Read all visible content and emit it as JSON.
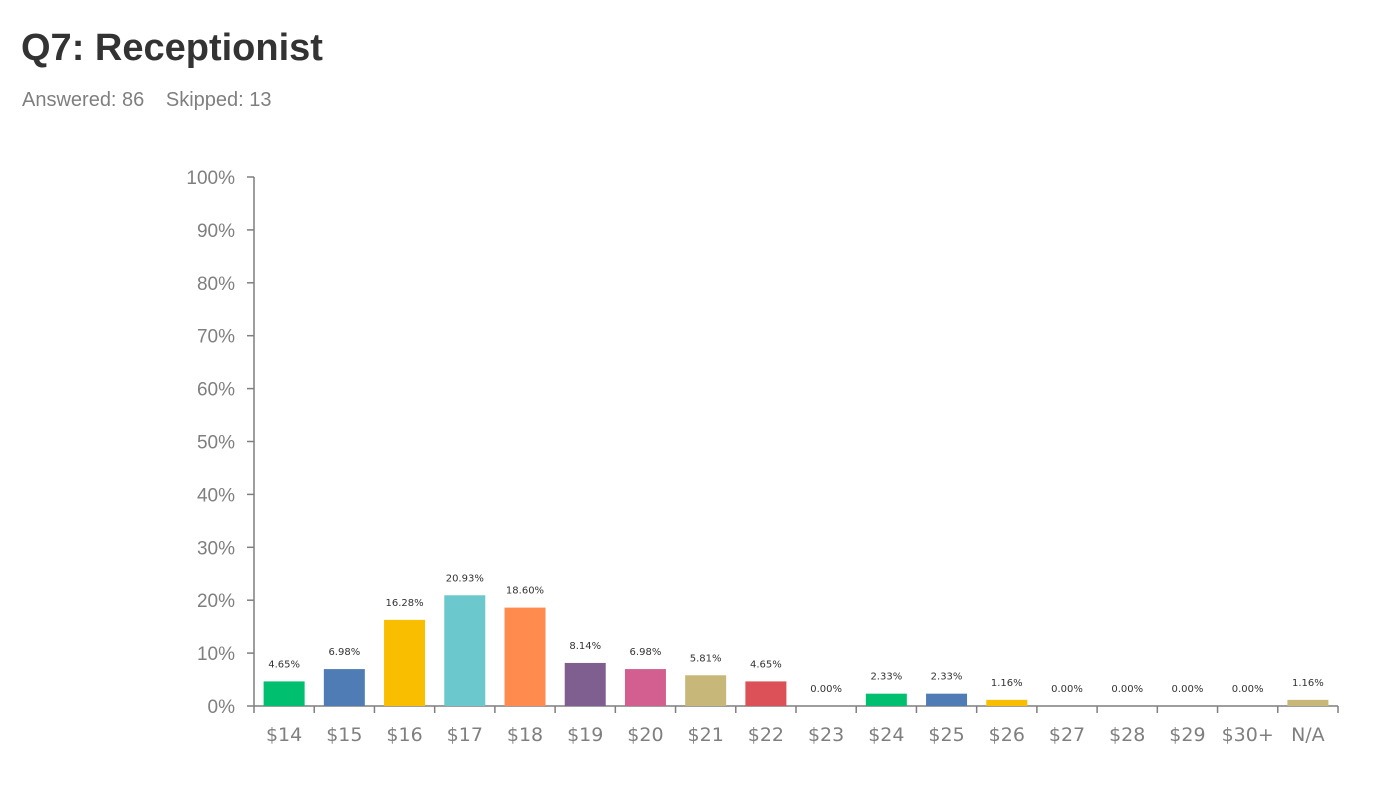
{
  "header": {
    "title": "Q7: Receptionist",
    "answered": "Answered: 86",
    "skipped": "Skipped: 13"
  },
  "chart_data": {
    "type": "bar",
    "title": "Q7: Receptionist",
    "xlabel": "",
    "ylabel": "",
    "ylim": [
      0,
      100
    ],
    "yticks": [
      "0%",
      "10%",
      "20%",
      "30%",
      "40%",
      "50%",
      "60%",
      "70%",
      "80%",
      "90%",
      "100%"
    ],
    "categories": [
      "$14",
      "$15",
      "$16",
      "$17",
      "$18",
      "$19",
      "$20",
      "$21",
      "$22",
      "$23",
      "$24",
      "$25",
      "$26",
      "$27",
      "$28",
      "$29",
      "$30+",
      "N/A"
    ],
    "values": [
      4.65,
      6.98,
      16.28,
      20.93,
      18.6,
      8.14,
      6.98,
      5.81,
      4.65,
      0.0,
      2.33,
      2.33,
      1.16,
      0.0,
      0.0,
      0.0,
      0.0,
      1.16
    ],
    "data_labels": [
      "4.65%",
      "6.98%",
      "16.28%",
      "20.93%",
      "18.60%",
      "8.14%",
      "6.98%",
      "5.81%",
      "4.65%",
      "0.00%",
      "2.33%",
      "2.33%",
      "1.16%",
      "0.00%",
      "0.00%",
      "0.00%",
      "0.00%",
      "1.16%"
    ],
    "colors": [
      "#00bf6f",
      "#507cb6",
      "#f9be00",
      "#6bc8cd",
      "#ff8b4f",
      "#7f5e90",
      "#d25f90",
      "#c7b879",
      "#dc5158",
      "#6b8ed4",
      "#00bf6f",
      "#507cb6",
      "#f9be00",
      "#6bc8cd",
      "#ff8b4f",
      "#7f5e90",
      "#d25f90",
      "#c7b879"
    ],
    "grid": false,
    "legend": "none"
  }
}
